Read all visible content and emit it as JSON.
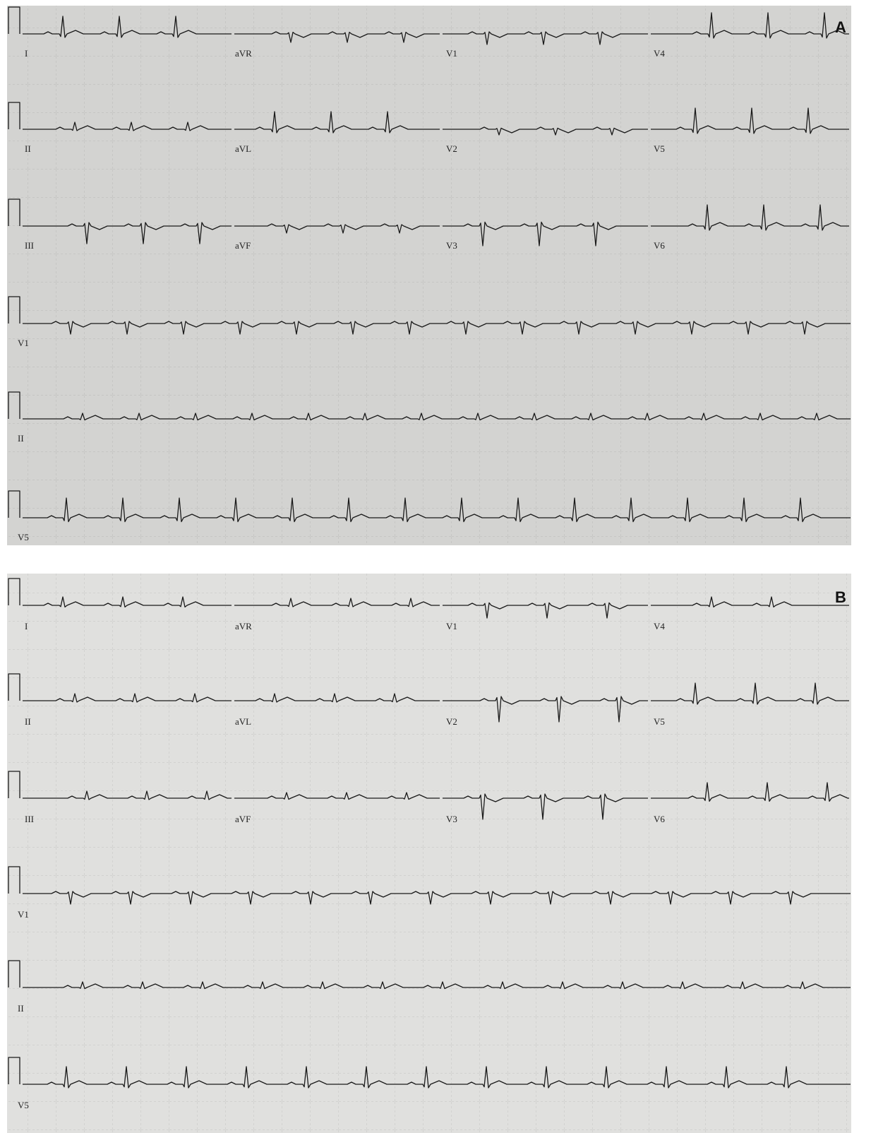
{
  "panels": [
    {
      "label": "A",
      "rows": [
        [
          "I",
          "aVR",
          "V1",
          "V4"
        ],
        [
          "II",
          "aVL",
          "V2",
          "V5"
        ],
        [
          "III",
          "aVF",
          "V3",
          "V6"
        ],
        [
          "V1"
        ],
        [
          "II"
        ],
        [
          "V5"
        ]
      ]
    },
    {
      "label": "B",
      "rows": [
        [
          "I",
          "aVR",
          "V1",
          "V4"
        ],
        [
          "II",
          "aVL",
          "V2",
          "V5"
        ],
        [
          "III",
          "aVF",
          "V3",
          "V6"
        ],
        [
          "V1"
        ],
        [
          "II"
        ],
        [
          "V5"
        ]
      ]
    }
  ]
}
